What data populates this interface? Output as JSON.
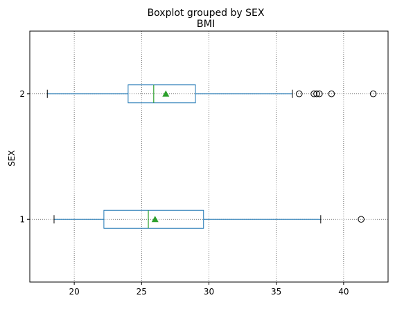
{
  "chart_data": {
    "type": "boxplot",
    "orientation": "horizontal",
    "suptitle": "Boxplot grouped by SEX",
    "title": "BMI",
    "xlabel": "",
    "ylabel": "SEX",
    "xlim": [
      16.7,
      43.3
    ],
    "xticks": [
      20,
      25,
      30,
      35,
      40
    ],
    "grid": true,
    "colors": {
      "box": "#1f77b4",
      "median": "#2ca02c",
      "mean": "#2ca02c",
      "outlier": "#000000",
      "grid": "#555555"
    },
    "groups": [
      {
        "label": "1",
        "whisker_low": 18.5,
        "q1": 22.2,
        "median": 25.5,
        "q3": 29.6,
        "whisker_high": 38.3,
        "mean": 26.0,
        "outliers": [
          41.3
        ]
      },
      {
        "label": "2",
        "whisker_low": 18.0,
        "q1": 24.0,
        "median": 25.9,
        "q3": 29.0,
        "whisker_high": 36.2,
        "mean": 26.8,
        "outliers": [
          36.7,
          37.8,
          38.0,
          38.2,
          39.1,
          42.2
        ]
      }
    ]
  }
}
